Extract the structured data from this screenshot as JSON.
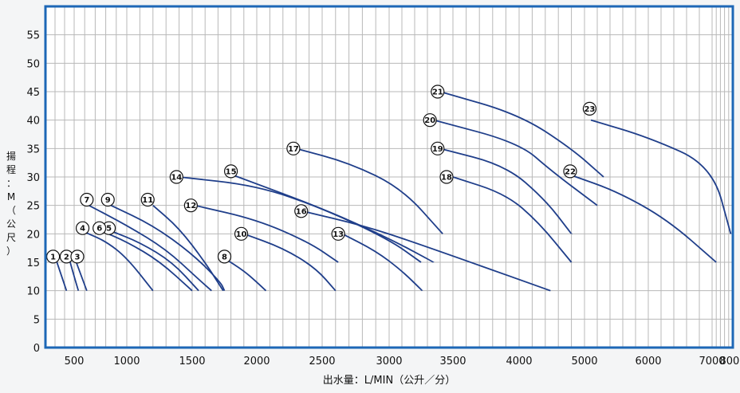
{
  "chart_data": {
    "type": "line",
    "title": "",
    "xlabel": "出水量：L/MIN（公升／分）",
    "ylabel": "揚程：M（公尺）",
    "xlim": [
      200,
      8200
    ],
    "ylim": [
      0,
      60
    ],
    "grid": true,
    "x_ticks": [
      500,
      1000,
      1500,
      2000,
      2500,
      3000,
      3500,
      4000,
      5000,
      6000,
      7000,
      8000
    ],
    "y_ticks": [
      0,
      5,
      10,
      15,
      20,
      25,
      30,
      35,
      40,
      45,
      50,
      55
    ],
    "series": [
      {
        "name": "1",
        "label_at": [
          280,
          16
        ],
        "points": [
          [
            300,
            16
          ],
          [
            350,
            13.5
          ],
          [
            420,
            10
          ]
        ]
      },
      {
        "name": "2",
        "label_at": [
          420,
          16
        ],
        "points": [
          [
            450,
            15.5
          ],
          [
            500,
            12.5
          ],
          [
            540,
            10
          ]
        ]
      },
      {
        "name": "3",
        "label_at": [
          530,
          16
        ],
        "points": [
          [
            520,
            15
          ],
          [
            570,
            12.5
          ],
          [
            620,
            10
          ]
        ]
      },
      {
        "name": "4",
        "label_at": [
          580,
          21
        ],
        "points": [
          [
            600,
            20.3
          ],
          [
            800,
            18.7
          ],
          [
            1000,
            15.8
          ],
          [
            1200,
            10
          ]
        ]
      },
      {
        "name": "5",
        "label_at": [
          830,
          21
        ],
        "points": [
          [
            850,
            20.5
          ],
          [
            1100,
            18.5
          ],
          [
            1350,
            15
          ],
          [
            1550,
            10
          ]
        ]
      },
      {
        "name": "6",
        "label_at": [
          740,
          21
        ],
        "points": [
          [
            760,
            20.5
          ],
          [
            1000,
            18.6
          ],
          [
            1250,
            15.2
          ],
          [
            1500,
            10
          ]
        ]
      },
      {
        "name": "7",
        "label_at": [
          620,
          26
        ],
        "points": [
          [
            640,
            25
          ],
          [
            1000,
            21.5
          ],
          [
            1300,
            17.3
          ],
          [
            1550,
            12
          ],
          [
            1650,
            10
          ]
        ]
      },
      {
        "name": "8",
        "label_at": [
          1750,
          16
        ],
        "points": [
          [
            1750,
            15.7
          ],
          [
            1900,
            13.5
          ],
          [
            2000,
            11.5
          ],
          [
            2070,
            10
          ]
        ]
      },
      {
        "name": "9",
        "label_at": [
          820,
          26
        ],
        "points": [
          [
            850,
            25
          ],
          [
            1200,
            21.5
          ],
          [
            1500,
            16.5
          ],
          [
            1720,
            11.5
          ],
          [
            1750,
            10
          ]
        ]
      },
      {
        "name": "10",
        "label_at": [
          1880,
          20
        ],
        "points": [
          [
            1900,
            20
          ],
          [
            2200,
            17.5
          ],
          [
            2450,
            14
          ],
          [
            2600,
            10
          ]
        ]
      },
      {
        "name": "11",
        "label_at": [
          1160,
          26
        ],
        "points": [
          [
            1200,
            25
          ],
          [
            1400,
            21
          ],
          [
            1600,
            15
          ],
          [
            1740,
            10
          ]
        ]
      },
      {
        "name": "12",
        "label_at": [
          1490,
          25
        ],
        "points": [
          [
            1520,
            25
          ],
          [
            2000,
            22.5
          ],
          [
            2400,
            18.5
          ],
          [
            2620,
            15
          ]
        ]
      },
      {
        "name": "13",
        "label_at": [
          2620,
          20
        ],
        "points": [
          [
            2650,
            20
          ],
          [
            2900,
            17
          ],
          [
            3100,
            13.5
          ],
          [
            3260,
            10
          ]
        ]
      },
      {
        "name": "14",
        "label_at": [
          1380,
          30
        ],
        "points": [
          [
            1400,
            30
          ],
          [
            2000,
            28.5
          ],
          [
            2500,
            24.5
          ],
          [
            3000,
            19
          ],
          [
            3250,
            15
          ]
        ]
      },
      {
        "name": "15",
        "label_at": [
          1800,
          31
        ],
        "points": [
          [
            1820,
            30.3
          ],
          [
            2500,
            24.5
          ],
          [
            3000,
            19.2
          ],
          [
            3350,
            15
          ]
        ]
      },
      {
        "name": "16",
        "label_at": [
          2340,
          24
        ],
        "points": [
          [
            2350,
            24
          ],
          [
            2800,
            21.5
          ],
          [
            3200,
            18.5
          ],
          [
            4480,
            10
          ]
        ]
      },
      {
        "name": "17",
        "label_at": [
          2280,
          35
        ],
        "points": [
          [
            2300,
            35
          ],
          [
            2700,
            32.5
          ],
          [
            3100,
            28
          ],
          [
            3420,
            20
          ]
        ]
      },
      {
        "name": "18",
        "label_at": [
          3450,
          30
        ],
        "points": [
          [
            3500,
            30
          ],
          [
            3900,
            27
          ],
          [
            4300,
            22
          ],
          [
            4800,
            15
          ]
        ]
      },
      {
        "name": "19",
        "label_at": [
          3380,
          35
        ],
        "points": [
          [
            3400,
            35
          ],
          [
            3900,
            32
          ],
          [
            4400,
            26
          ],
          [
            4800,
            20
          ]
        ]
      },
      {
        "name": "20",
        "label_at": [
          3320,
          40
        ],
        "points": [
          [
            3350,
            40
          ],
          [
            4000,
            36
          ],
          [
            4500,
            31
          ],
          [
            5200,
            25
          ]
        ]
      },
      {
        "name": "21",
        "label_at": [
          3380,
          45
        ],
        "points": [
          [
            3400,
            45
          ],
          [
            4000,
            41
          ],
          [
            4800,
            35
          ],
          [
            5300,
            30
          ]
        ]
      },
      {
        "name": "22",
        "label_at": [
          4780,
          31
        ],
        "points": [
          [
            4800,
            30.3
          ],
          [
            5500,
            27.5
          ],
          [
            6300,
            22.5
          ],
          [
            7200,
            15
          ]
        ]
      },
      {
        "name": "23",
        "label_at": [
          5080,
          42
        ],
        "points": [
          [
            5100,
            40
          ],
          [
            6000,
            37
          ],
          [
            7000,
            32
          ],
          [
            7900,
            20
          ]
        ]
      }
    ]
  }
}
